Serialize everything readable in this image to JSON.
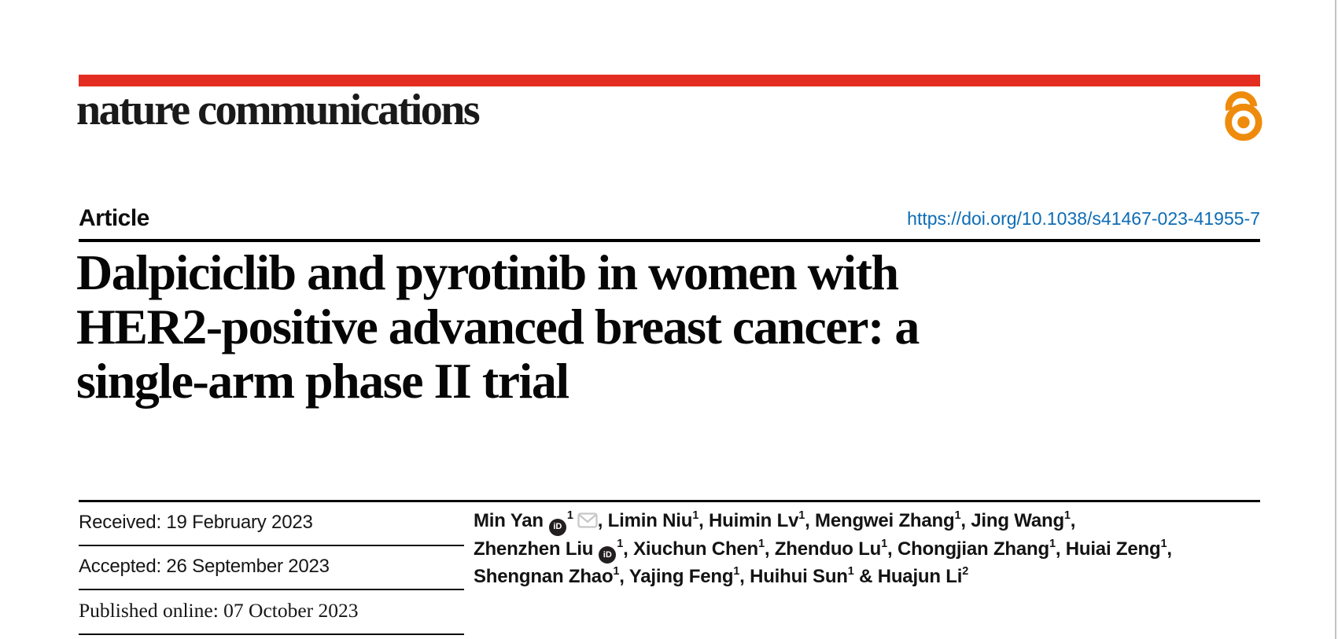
{
  "masthead": {
    "journal_name": "nature communications",
    "open_access_icon": "open-padlock"
  },
  "article_header": {
    "article_type": "Article",
    "doi_link": "https://doi.org/10.1038/s41467-023-41955-7",
    "title_lines": [
      "Dalpiciclib and pyrotinib in women with",
      "HER2-positive advanced breast cancer: a",
      "single-arm phase II trial"
    ]
  },
  "dates": {
    "received": "Received: 19 February 2023",
    "accepted": "Accepted: 26 September 2023",
    "published": "Published online: 07 October 2023"
  },
  "authors": {
    "lines": [
      [
        {
          "name": "Min Yan",
          "orcid": true,
          "sup": "1",
          "envelope": true,
          "after": ", "
        },
        {
          "name": "Limin Niu",
          "sup": "1",
          "after": ", "
        },
        {
          "name": "Huimin Lv",
          "sup": "1",
          "after": ", "
        },
        {
          "name": "Mengwei Zhang",
          "sup": "1",
          "after": ", "
        },
        {
          "name": "Jing Wang",
          "sup": "1",
          "after": ","
        }
      ],
      [
        {
          "name": "Zhenzhen Liu",
          "orcid": true,
          "sup": "1",
          "after": ", "
        },
        {
          "name": "Xiuchun Chen",
          "sup": "1",
          "after": ", "
        },
        {
          "name": "Zhenduo Lu",
          "sup": "1",
          "after": ", "
        },
        {
          "name": "Chongjian Zhang",
          "sup": "1",
          "after": ", "
        },
        {
          "name": "Huiai Zeng",
          "sup": "1",
          "after": ","
        }
      ],
      [
        {
          "name": "Shengnan Zhao",
          "sup": "1",
          "after": ", "
        },
        {
          "name": "Yajing Feng",
          "sup": "1",
          "after": ", "
        },
        {
          "name": "Huihui Sun",
          "sup": "1",
          "after": " & "
        },
        {
          "name": "Huajun Li",
          "sup": "2",
          "after": ""
        }
      ]
    ]
  },
  "colors": {
    "brand_red": "#e42d21",
    "open_access_orange": "#ef8b0c",
    "link_blue": "#0d6cb5",
    "title_black": "#060606",
    "envelope_gray": "#c6c6c6",
    "orcid_black": "#231f20",
    "page_edge_gray": "#c3c3c3"
  }
}
